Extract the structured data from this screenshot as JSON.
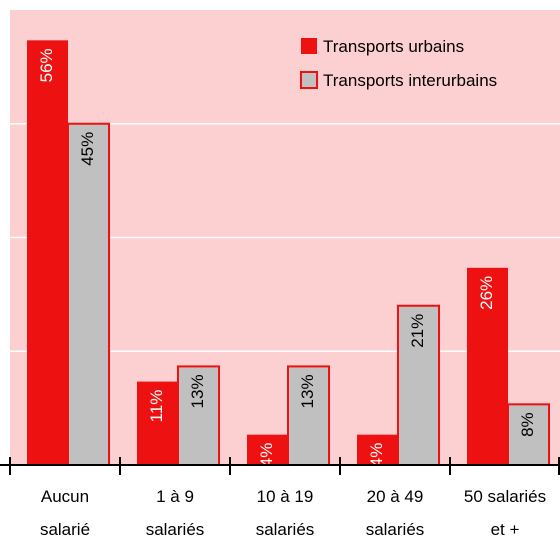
{
  "chart_data": {
    "type": "bar",
    "categories": [
      [
        "Aucun",
        "salarié"
      ],
      [
        "1 à 9",
        "salariés"
      ],
      [
        "10 à 19",
        "salariés"
      ],
      [
        "20 à 49",
        "salariés"
      ],
      [
        "50 salariés",
        "et +"
      ]
    ],
    "series": [
      {
        "name": "Transports urbains",
        "color": "#ee1111",
        "values": [
          56,
          11,
          4,
          4,
          26
        ],
        "value_labels": [
          "56%",
          "11%",
          "4%",
          "4%",
          "26%"
        ]
      },
      {
        "name": "Transports interurbains",
        "color": "#c0c0c0",
        "values": [
          45,
          13,
          13,
          21,
          8
        ],
        "value_labels": [
          "45%",
          "13%",
          "13%",
          "21%",
          "8%"
        ]
      }
    ],
    "ylim": [
      0,
      60
    ],
    "yticks": [
      15,
      30,
      45
    ],
    "grid": true,
    "legend": "top-right"
  }
}
